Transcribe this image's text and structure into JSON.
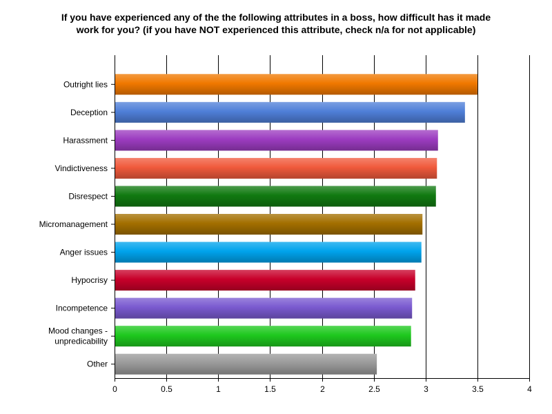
{
  "chart_data": {
    "type": "bar",
    "orientation": "horizontal",
    "title_lines": [
      "If you have experienced any of the the following attributes in a boss, how difficult has it made",
      "work for you?  (if you have NOT experienced this attribute, check n/a for not applicable)"
    ],
    "categories": [
      [
        "Outright lies"
      ],
      [
        "Deception"
      ],
      [
        "Harassment"
      ],
      [
        "Vindictiveness"
      ],
      [
        "Disrespect"
      ],
      [
        "Micromanagement"
      ],
      [
        "Anger issues"
      ],
      [
        "Hypocrisy"
      ],
      [
        "Incompetence"
      ],
      [
        "Mood changes -",
        "unpredicability"
      ],
      [
        "Other"
      ]
    ],
    "values": [
      3.5,
      3.38,
      3.12,
      3.11,
      3.1,
      2.97,
      2.96,
      2.9,
      2.87,
      2.86,
      2.53
    ],
    "colors": [
      "#f07800",
      "#4f7fd8",
      "#9c3cc0",
      "#f05a3c",
      "#117a11",
      "#a36f00",
      "#00a3ec",
      "#c8002a",
      "#7a5ad0",
      "#1ec81e",
      "#9a9a9a"
    ],
    "xlim": [
      0,
      4
    ],
    "xticks": [
      "0",
      "0.5",
      "1",
      "1.5",
      "2",
      "2.5",
      "3",
      "3.5",
      "4"
    ],
    "grid": "vertical",
    "legend": "none"
  }
}
